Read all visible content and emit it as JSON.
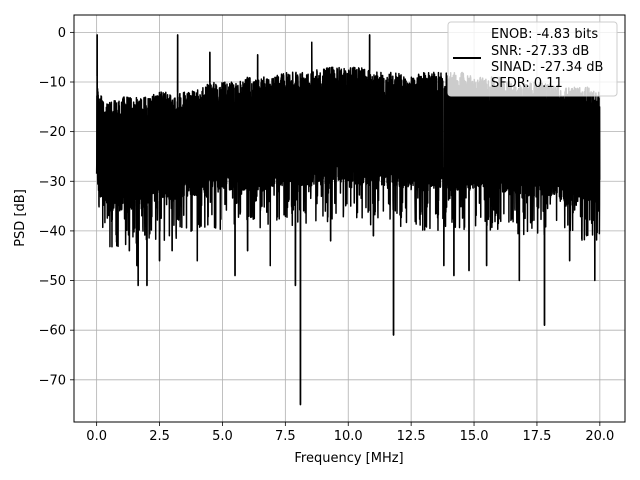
{
  "chart_data": {
    "type": "line",
    "title": "",
    "xlabel": "Frequency [MHz]",
    "ylabel": "PSD [dB]",
    "xlim": [
      -0.9,
      21.0
    ],
    "ylim": [
      -78.5,
      3.5
    ],
    "xticks": [
      0.0,
      2.5,
      5.0,
      7.5,
      10.0,
      12.5,
      15.0,
      17.5,
      20.0
    ],
    "xtick_labels": [
      "0.0",
      "2.5",
      "5.0",
      "7.5",
      "10.0",
      "12.5",
      "15.0",
      "17.5",
      "20.0"
    ],
    "yticks": [
      0,
      -10,
      -20,
      -30,
      -40,
      -50,
      -60,
      -70
    ],
    "ytick_labels": [
      "0",
      "−10",
      "−20",
      "−30",
      "−40",
      "−50",
      "−60",
      "−70"
    ],
    "grid": true,
    "legend": {
      "position": "top-right",
      "lines": [
        "ENOB: -4.83 bits",
        "SNR: -27.33 dB",
        "SINAD: -27.34 dB",
        "SFDR: 0.11"
      ]
    },
    "series": [
      {
        "color": "#000000",
        "noise_envelope": {
          "x": [
            0.0,
            0.1,
            0.3,
            0.6,
            1.0,
            1.5,
            2.0,
            2.5,
            3.0,
            3.5,
            4.0,
            4.5,
            5.0,
            5.5,
            6.0,
            6.5,
            7.0,
            7.5,
            8.0,
            8.5,
            9.0,
            9.5,
            10.0,
            10.5,
            11.0,
            11.5,
            12.0,
            12.5,
            13.0,
            13.5,
            14.0,
            14.5,
            15.0,
            15.5,
            16.0,
            16.5,
            17.0,
            17.5,
            18.0,
            18.5,
            19.0,
            19.5,
            20.0
          ],
          "upper": [
            -8,
            -12,
            -14,
            -14,
            -13,
            -13,
            -13,
            -12,
            -12,
            -12,
            -11,
            -10,
            -10,
            -10,
            -9,
            -9,
            -9,
            -8,
            -8,
            -8,
            -7,
            -7,
            -7,
            -7,
            -8,
            -8,
            -8,
            -9,
            -8,
            -8,
            -8,
            -8,
            -9,
            -9,
            -9,
            -10,
            -10,
            -10,
            -10,
            -11,
            -11,
            -11,
            -12
          ],
          "lower": [
            -30,
            -33,
            -35,
            -36,
            -36,
            -35,
            -35,
            -34,
            -34,
            -33,
            -33,
            -33,
            -32,
            -32,
            -32,
            -32,
            -31,
            -31,
            -31,
            -31,
            -31,
            -30,
            -30,
            -31,
            -31,
            -31,
            -31,
            -32,
            -32,
            -32,
            -32,
            -32,
            -32,
            -32,
            -32,
            -33,
            -33,
            -33,
            -33,
            -34,
            -34,
            -34,
            -34
          ]
        },
        "peaks": [
          {
            "x": 0.02,
            "y": -0.5
          },
          {
            "x": 3.22,
            "y": -0.5
          },
          {
            "x": 10.85,
            "y": -0.5
          },
          {
            "x": 8.55,
            "y": -2.0
          },
          {
            "x": 4.5,
            "y": -4.0
          },
          {
            "x": 6.4,
            "y": -4.5
          }
        ],
        "dips": [
          {
            "x": 0.8,
            "y": -43
          },
          {
            "x": 1.3,
            "y": -44
          },
          {
            "x": 1.6,
            "y": -47
          },
          {
            "x": 1.65,
            "y": -51
          },
          {
            "x": 2.0,
            "y": -51
          },
          {
            "x": 2.5,
            "y": -46
          },
          {
            "x": 3.0,
            "y": -44
          },
          {
            "x": 4.0,
            "y": -46
          },
          {
            "x": 5.5,
            "y": -49
          },
          {
            "x": 6.0,
            "y": -44
          },
          {
            "x": 6.9,
            "y": -47
          },
          {
            "x": 7.9,
            "y": -51
          },
          {
            "x": 8.1,
            "y": -75
          },
          {
            "x": 9.3,
            "y": -42
          },
          {
            "x": 11.0,
            "y": -41
          },
          {
            "x": 11.8,
            "y": -61
          },
          {
            "x": 13.8,
            "y": -47
          },
          {
            "x": 14.2,
            "y": -49
          },
          {
            "x": 14.8,
            "y": -48
          },
          {
            "x": 15.5,
            "y": -47
          },
          {
            "x": 16.8,
            "y": -50
          },
          {
            "x": 17.8,
            "y": -59
          },
          {
            "x": 18.8,
            "y": -46
          },
          {
            "x": 19.8,
            "y": -50
          }
        ]
      }
    ]
  }
}
